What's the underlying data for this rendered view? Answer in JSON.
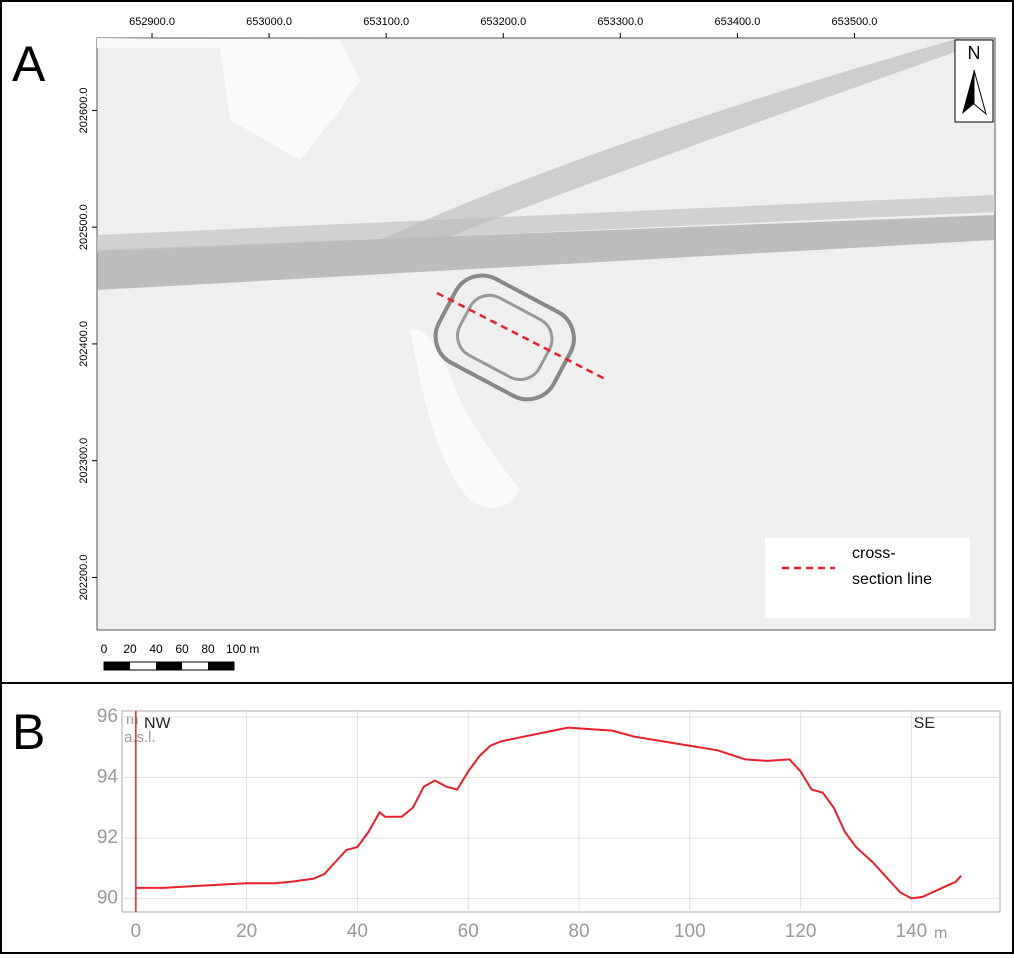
{
  "panel_labels": [
    "A",
    "B"
  ],
  "map": {
    "xlim": [
      652853,
      653620
    ],
    "ylim": [
      202155,
      202662
    ],
    "xticks": [
      {
        "value": 652900,
        "label": "652900.0"
      },
      {
        "value": 653000,
        "label": "653000.0"
      },
      {
        "value": 653100,
        "label": "653100.0"
      },
      {
        "value": 653200,
        "label": "653200.0"
      },
      {
        "value": 653300,
        "label": "653300.0"
      },
      {
        "value": 653400,
        "label": "653400.0"
      },
      {
        "value": 653500,
        "label": "653500.0"
      }
    ],
    "yticks": [
      {
        "value": 202200,
        "label": "202200.0"
      },
      {
        "value": 202300,
        "label": "202300.0"
      },
      {
        "value": 202400,
        "label": "202400.0"
      },
      {
        "value": 202500,
        "label": "202500.0"
      },
      {
        "value": 202600,
        "label": "202600.0"
      }
    ],
    "north": "N",
    "scale_labels": [
      "0",
      "20",
      "40",
      "60",
      "80",
      "100 m"
    ],
    "legend": [
      "cross-",
      "section line"
    ]
  },
  "chart_data": {
    "type": "line",
    "annotations": [
      "NW",
      "SE"
    ],
    "y_label": [
      "m",
      "a.s.l."
    ],
    "x_label": "m",
    "xlim": [
      -2.5,
      156
    ],
    "ylim": [
      89.55,
      96.2
    ],
    "xticks": [
      0,
      20,
      40,
      60,
      80,
      100,
      120,
      140
    ],
    "yticks": [
      90,
      92,
      94,
      96
    ],
    "grid": true,
    "series": [
      {
        "color": "#e8202a",
        "x": [
          0,
          5,
          10,
          15,
          20,
          25,
          28,
          30,
          32,
          34,
          36,
          38,
          40,
          42,
          44,
          45,
          48,
          50,
          52,
          54,
          56,
          58,
          60,
          62,
          64,
          66,
          70,
          74,
          78,
          82,
          86,
          90,
          95,
          100,
          105,
          110,
          114,
          118,
          120,
          122,
          124,
          126,
          128,
          130,
          133,
          136,
          138,
          140,
          142,
          145,
          148,
          149
        ],
        "values": [
          90.35,
          90.35,
          90.4,
          90.45,
          90.5,
          90.5,
          90.55,
          90.6,
          90.65,
          90.8,
          91.2,
          91.6,
          91.7,
          92.2,
          92.85,
          92.7,
          92.7,
          93.0,
          93.7,
          93.9,
          93.7,
          93.6,
          94.2,
          94.7,
          95.05,
          95.2,
          95.35,
          95.5,
          95.65,
          95.6,
          95.55,
          95.35,
          95.2,
          95.05,
          94.9,
          94.6,
          94.55,
          94.6,
          94.2,
          93.6,
          93.5,
          93.0,
          92.2,
          91.7,
          91.2,
          90.6,
          90.2,
          90.0,
          90.05,
          90.3,
          90.55,
          90.75
        ]
      }
    ]
  }
}
